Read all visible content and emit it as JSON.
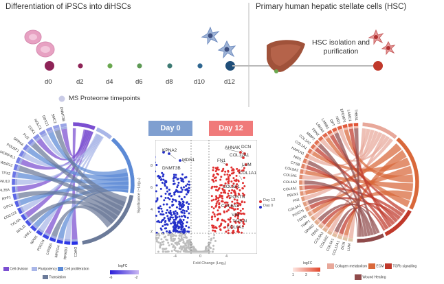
{
  "timeline": {
    "title_left": "Differentiation of iPSCs into diHSCs",
    "title_right": "Primary human hepatic stellate cells (HSC)",
    "timepoints": [
      "d0",
      "d2",
      "d4",
      "d6",
      "d8",
      "d10",
      "d12"
    ],
    "legend": "MS Proteome timepoints",
    "hsc_label_line1": "HSC isolation and",
    "hsc_label_line2": "purification",
    "colors": {
      "start": "#8e2457",
      "mid": "#6aa84f",
      "end": "#1f4e79",
      "right": "#c0392b"
    }
  },
  "left_chord": {
    "genes": [
      "DMC1",
      "RFWD3",
      "MRTO4",
      "LIN28A",
      "PDCD4",
      "NPM1",
      "VRK1",
      "RPL11",
      "TXLNA",
      "CDC123",
      "GPC4",
      "RPF1",
      "RPL35A",
      "SNU13",
      "TPX2",
      "WDR12",
      "MORF4L1",
      "POU5F1",
      "DPPA4",
      "FUS",
      "CDK1",
      "NOLC1",
      "DDX21",
      "SMC2",
      "DNMT3B"
    ],
    "legend": [
      {
        "label": "Cell division",
        "color": "#7b4fd1"
      },
      {
        "label": "Pluripotency",
        "color": "#a9b6e8"
      },
      {
        "label": "Cell proliferation",
        "color": "#5c8ad6"
      },
      {
        "label": "Translation",
        "color": "#6b7a99"
      }
    ],
    "logfc_label": "logFC",
    "logfc_ticks": [
      "-6",
      "-2"
    ]
  },
  "volcano": {
    "day0_label": "Day 0",
    "day12_label": "Day 12",
    "xlabel": "Fold Change (Log₂)",
    "ylabel": "Significance (−Log₁₀)",
    "legend": [
      {
        "label": "Day 12",
        "color": "#e03131"
      },
      {
        "label": "Day 0",
        "color": "#2430c9"
      }
    ],
    "labels_left": [
      "KPNA2",
      "MDN1",
      "DNMT3B"
    ],
    "labels_right": [
      "AHNAK",
      "DCN",
      "COL12A1",
      "FN1",
      "LUM",
      "COL1A1",
      "POSTN",
      "COL3A1",
      "VIM",
      "TAGLN",
      "COL6A3",
      "COL6A1"
    ],
    "xticks": [
      "-4",
      "0",
      "4"
    ],
    "yticks": [
      "2",
      "4",
      "6",
      "8"
    ]
  },
  "right_chord": {
    "genes": [
      "LUM",
      "DCN",
      "COL12A1",
      "COL6A1",
      "COL6A2",
      "COL6A3",
      "FBN1",
      "SPARC",
      "TIMP1",
      "TGFBI",
      "POSTN",
      "COL3A1",
      "FN1",
      "FBLN1",
      "COL4A1",
      "COL4A2",
      "COL5A1",
      "COL5A2",
      "CTSB",
      "NID1",
      "HAPLN1",
      "COL1A1",
      "COL1A2",
      "MMP2",
      "FBN2",
      "LAMA4",
      "LAMB1",
      "DPT",
      "NID2",
      "EFEMP1",
      "LAMC1",
      "THBS1"
    ],
    "legend": [
      {
        "label": "Collagen metabolism",
        "color": "#e8a89a"
      },
      {
        "label": "ECM",
        "color": "#d9683a"
      },
      {
        "label": "TGFb signalling",
        "color": "#c0392b"
      },
      {
        "label": "Wound Healing",
        "color": "#8f4a4a"
      }
    ],
    "logfc_label": "logFC",
    "logfc_ticks": [
      "1",
      "3",
      "5"
    ]
  }
}
